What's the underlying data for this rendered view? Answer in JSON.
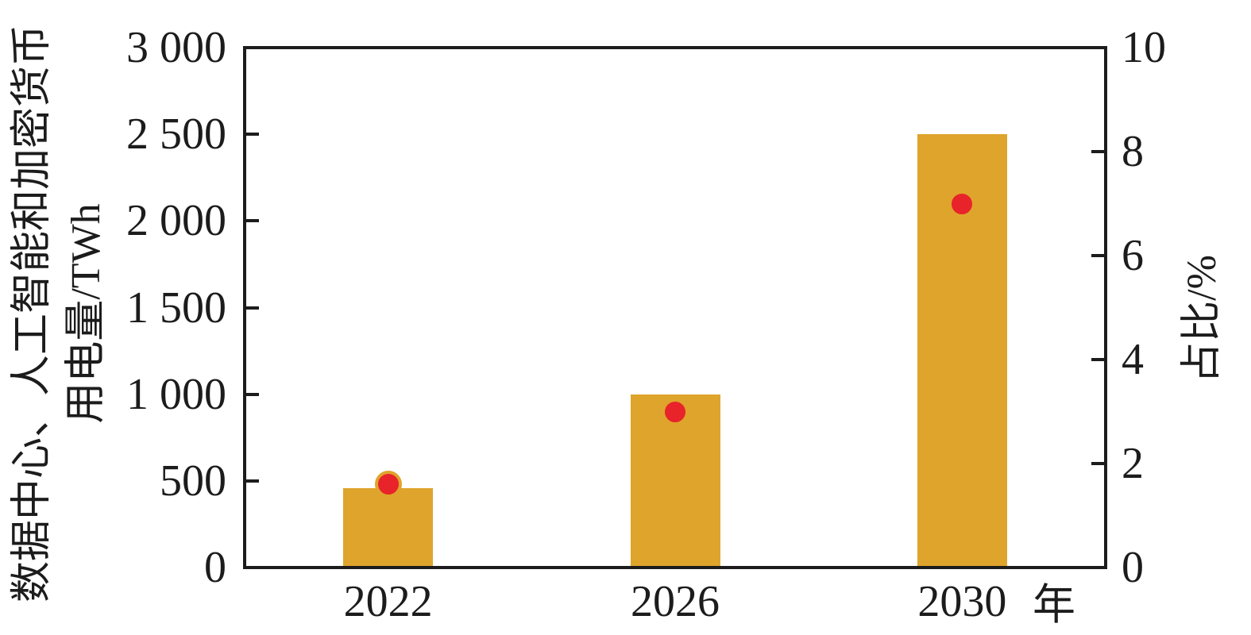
{
  "chart_data": {
    "type": "bar",
    "title": "",
    "categories": [
      "2022",
      "2026",
      "2030"
    ],
    "series": [
      {
        "name": "数据中心、人工智能和加密货币用电量",
        "type": "bar",
        "axis": "left",
        "unit": "TWh",
        "values": [
          460,
          1000,
          2500
        ],
        "color": "#DFA42C"
      },
      {
        "name": "占比",
        "type": "scatter",
        "axis": "right",
        "unit": "%",
        "values": [
          1.6,
          3.0,
          7.0
        ],
        "color": "#E8232A",
        "edge_color": "#DFA42C"
      }
    ],
    "left_axis": {
      "label_line1": "数据中心、人工智能和加密货币",
      "label_line2": "用电量/TWh",
      "min": 0,
      "max": 3000,
      "tick_values": [
        0,
        500,
        1000,
        1500,
        2000,
        2500,
        3000
      ],
      "tick_labels": [
        "0",
        "500",
        "1 000",
        "1 500",
        "2 000",
        "2 500",
        "3 000"
      ]
    },
    "right_axis": {
      "label": "占比/%",
      "min": 0,
      "max": 10,
      "tick_values": [
        0,
        2,
        4,
        6,
        8,
        10
      ],
      "tick_labels": [
        "0",
        "2",
        "4",
        "6",
        "8",
        "10"
      ]
    },
    "x_axis": {
      "unit_label": "年"
    },
    "grid": false,
    "legend": "none"
  },
  "colors": {
    "axis": "#1c1c1c",
    "bar": "#DFA42C",
    "dot": "#E8232A",
    "dot_edge": "#DFA42C",
    "background": "#FFFFFF"
  }
}
